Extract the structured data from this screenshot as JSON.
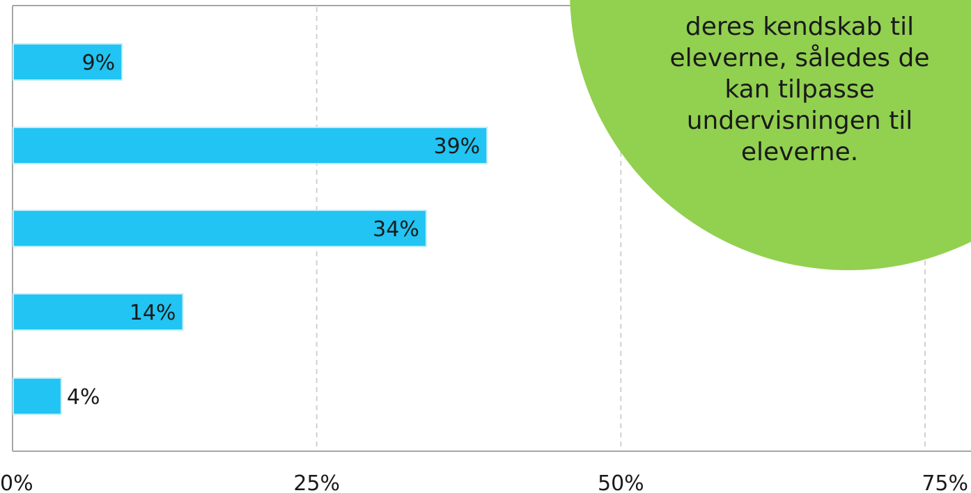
{
  "chart_data": {
    "type": "bar",
    "orientation": "horizontal",
    "categories": [
      "",
      "",
      "",
      "",
      ""
    ],
    "values": [
      9,
      39,
      34,
      14,
      4
    ],
    "value_labels": [
      "9%",
      "39%",
      "34%",
      "14%",
      "4%"
    ],
    "xlim": [
      0,
      75
    ],
    "x_ticks": [
      0,
      25,
      50,
      75
    ],
    "x_tick_labels": [
      "0%",
      "25%",
      "50%",
      "75%"
    ],
    "grid": "vertical dashed",
    "bar_color": "#21c4f3",
    "title": "",
    "xlabel": "",
    "ylabel": ""
  },
  "callout": {
    "text": "deres kendskab til\neleverne, således de\nkan tilpasse\nundervisningen til\neleverne.",
    "color": "#92d050"
  }
}
